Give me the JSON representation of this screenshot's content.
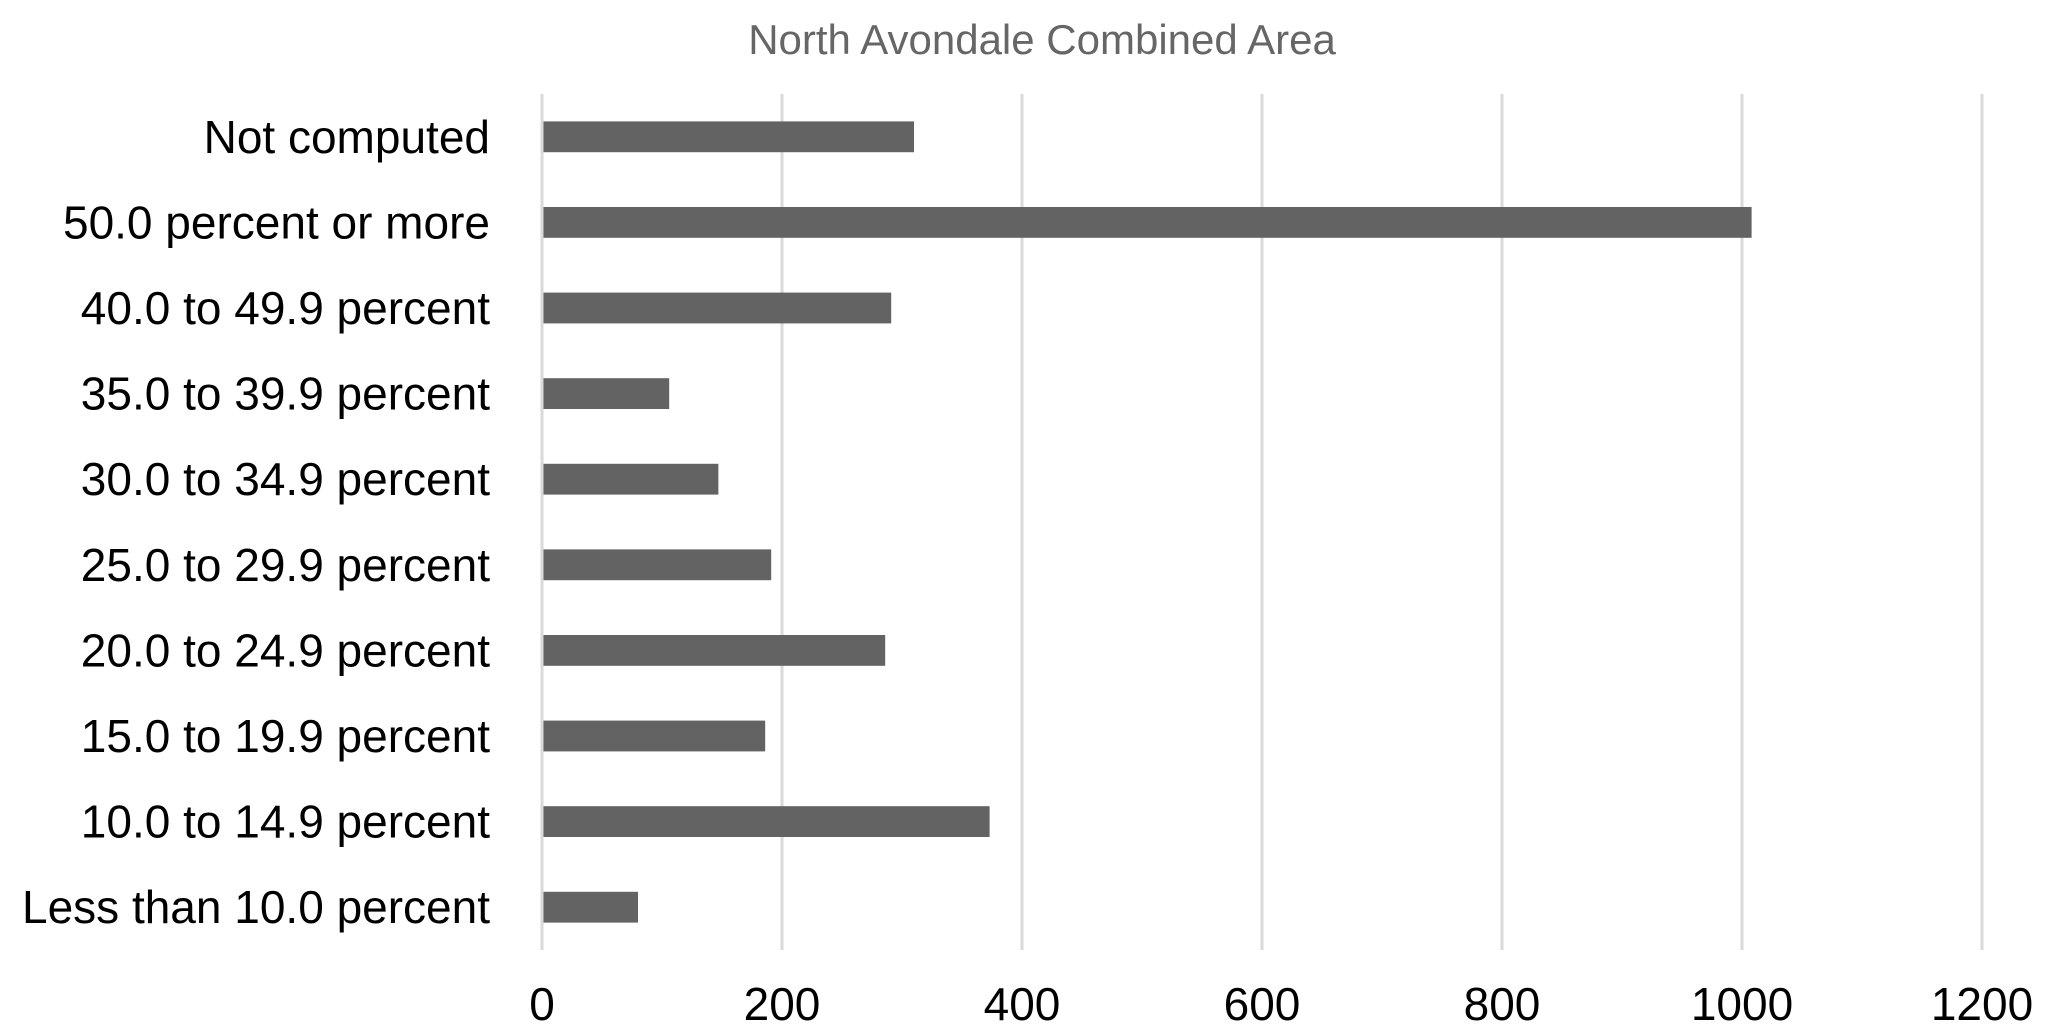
{
  "chart_data": {
    "type": "bar",
    "orientation": "horizontal",
    "title": "North Avondale Combined Area",
    "xlabel": "",
    "ylabel": "",
    "categories": [
      "Less than 10.0 percent",
      "10.0 to 14.9 percent",
      "15.0 to 19.9 percent",
      "20.0 to 24.9 percent",
      "25.0 to 29.9 percent",
      "30.0 to 34.9 percent",
      "35.0 to 39.9 percent",
      "40.0 to 49.9 percent",
      "50.0 percent or more",
      "Not computed"
    ],
    "values": [
      80,
      373,
      186,
      286,
      191,
      147,
      106,
      291,
      1008,
      310
    ],
    "xlim": [
      0,
      1200
    ],
    "xticks": [
      0,
      200,
      400,
      600,
      800,
      1000,
      1200
    ],
    "grid": true,
    "legend": "none",
    "colors": {
      "bar": "#636363",
      "grid": "#d9d9d9",
      "title": "#666666"
    }
  }
}
